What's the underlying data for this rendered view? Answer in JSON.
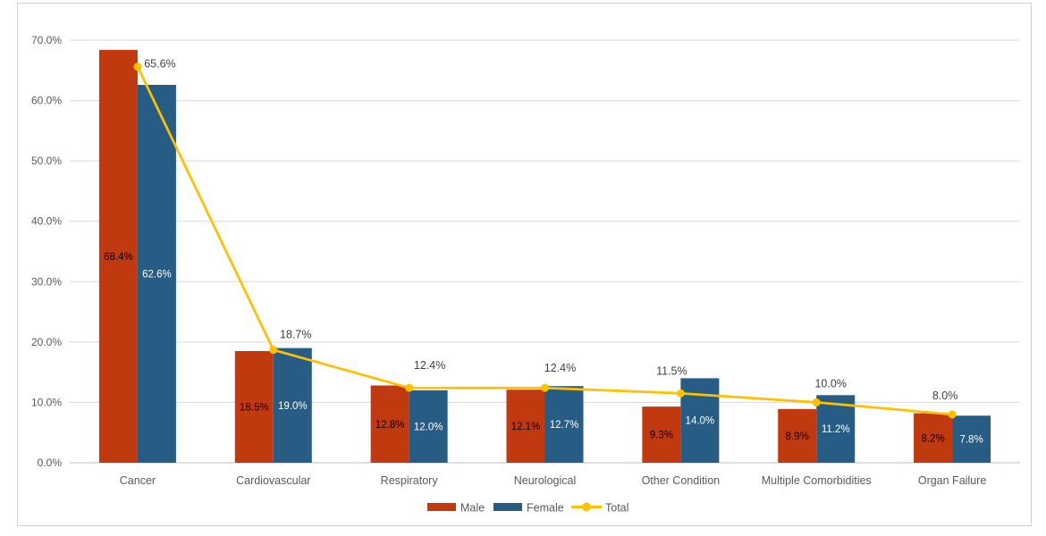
{
  "chart_data": {
    "type": "combo",
    "categories": [
      "Cancer",
      "Cardiovascular",
      "Respiratory",
      "Neurological",
      "Other Condition",
      "Multiple Comorbidities",
      "Organ Failure"
    ],
    "series": [
      {
        "name": "Male",
        "type": "bar",
        "values": [
          68.4,
          18.5,
          12.8,
          12.1,
          9.3,
          8.9,
          8.2
        ]
      },
      {
        "name": "Female",
        "type": "bar",
        "values": [
          62.6,
          19.0,
          12.0,
          12.7,
          14.0,
          11.2,
          7.8
        ]
      },
      {
        "name": "Total",
        "type": "line",
        "values": [
          65.6,
          18.7,
          12.4,
          12.4,
          11.5,
          10.0,
          8.0
        ]
      }
    ],
    "value_label_format": "one-decimal-percent",
    "y_axis": {
      "min": 0,
      "max": 70,
      "step": 10,
      "tick_labels": [
        "0.0%",
        "10.0%",
        "20.0%",
        "30.0%",
        "40.0%",
        "50.0%",
        "60.0%",
        "70.0%"
      ]
    },
    "legend": {
      "position": "bottom",
      "entries": [
        "Male",
        "Female",
        "Total"
      ]
    },
    "grid": "horizontal"
  },
  "colors": {
    "male": "#c13a0f",
    "female": "#275c85",
    "total": "#ffc000",
    "male_bar_label": "#000000",
    "female_bar_label": "#ffffff",
    "total_point_label": "#3f3f3f",
    "grid_line": "#d9d9d9",
    "axis_line": "#bfbfbf",
    "axis_text": "#595959",
    "legend_text": "#595959",
    "frame_border": "#cfcfcf",
    "background": "#ffffff"
  }
}
